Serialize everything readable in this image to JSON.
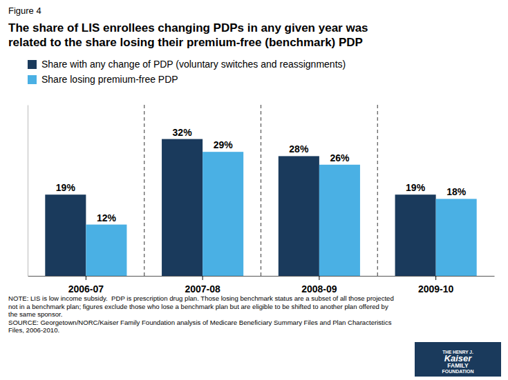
{
  "chart_data": {
    "type": "bar",
    "title": "The share of LIS enrollees changing PDPs in any given year was\nrelated to the share losing their premium-free (benchmark) PDP",
    "annotations": [
      "Figure 4",
      "NOTE: LIS is low income subsidy.  PDP is prescription drug plan. Those losing benchmark status are a subset of all those projected\nnot in a benchmark plan; figures exclude those who lose a benchmark plan but are eligible to be shifted to another plan offered by\nthe same sponsor.\nSOURCE: Georgetown/NORC/Kaiser Family Foundation analysis of Medicare Beneficiary Summary Files and Plan Characteristics\nFiles, 2006-2010.",
      "THE HENRY J.",
      "Kaiser",
      "FAMILY",
      "FOUNDATION"
    ],
    "categories": [
      "2006-07",
      "2007-08",
      "2008-09",
      "2009-10"
    ],
    "series": [
      {
        "name": "Share with any change of PDP (voluntary switches and reassignments)",
        "color": "#1a3a5c",
        "values": [
          19,
          32,
          28,
          19
        ],
        "value_labels": [
          "19%",
          "32%",
          "28%",
          "19%"
        ]
      },
      {
        "name": "Share losing premium-free PDP",
        "color": "#4ab0e4",
        "values": [
          12,
          29,
          26,
          18
        ],
        "value_labels": [
          "12%",
          "29%",
          "26%",
          "18%"
        ]
      }
    ],
    "ylim": [
      0,
      40
    ],
    "grid": false,
    "legend": "upper left",
    "data_labels": true,
    "tick_labels": "x"
  }
}
